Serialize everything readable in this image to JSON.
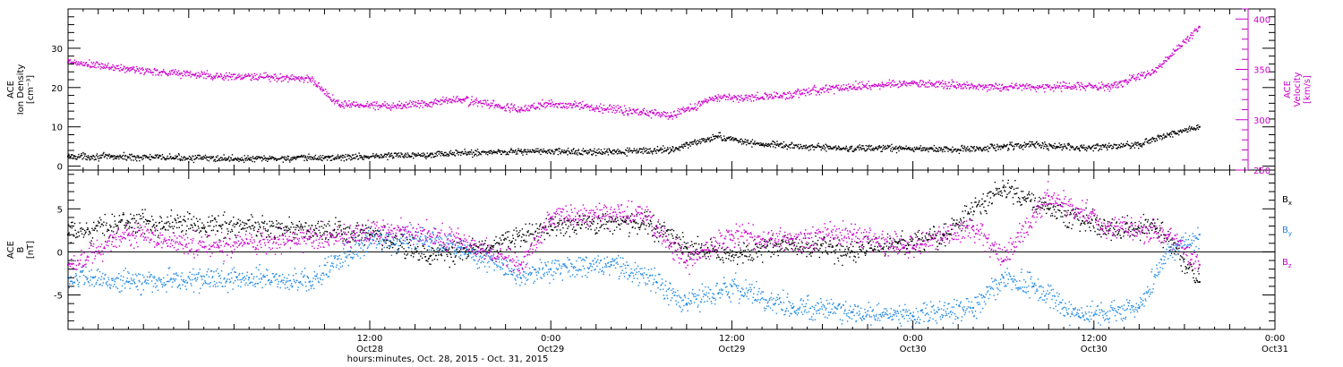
{
  "chart_data": {
    "type": "scatter",
    "x_axis": {
      "label": "hours:minutes, Oct. 28, 2015 - Oct. 31, 2015",
      "range": [
        "2015-10-27T16:00",
        "2015-10-31T00:00"
      ],
      "ticks": [
        {
          "time": "2015-10-28T12:00",
          "hm": "12:00",
          "day": "Oct28"
        },
        {
          "time": "2015-10-29T00:00",
          "hm": "0:00",
          "day": "Oct29"
        },
        {
          "time": "2015-10-29T12:00",
          "hm": "12:00",
          "day": "Oct29"
        },
        {
          "time": "2015-10-30T00:00",
          "hm": "0:00",
          "day": "Oct30"
        },
        {
          "time": "2015-10-30T12:00",
          "hm": "12:00",
          "day": "Oct30"
        },
        {
          "time": "2015-10-31T00:00",
          "hm": "0:00",
          "day": "Oct31"
        }
      ]
    },
    "panels": [
      {
        "id": "ace-plasma",
        "left_axis": {
          "ylabel": [
            "ACE",
            "Ion Density",
            "[cm⁻³]"
          ],
          "ylim": [
            -1,
            40
          ],
          "ticks": [
            0,
            10,
            20,
            30
          ],
          "color": "#000000"
        },
        "right_axis": {
          "ylabel": [
            "ACE",
            "Velocity",
            "[km/s]"
          ],
          "ylim": [
            250,
            410
          ],
          "ticks": [
            250,
            300,
            350,
            400
          ],
          "color": "#cc00cc"
        },
        "series": [
          {
            "key": "density",
            "axis": "left",
            "color": "#000000",
            "points": [
              [
                "2015-10-27T16:00",
                2.5
              ],
              [
                "2015-10-27T22:00",
                2.2
              ],
              [
                "2015-10-28T04:00",
                1.8
              ],
              [
                "2015-10-28T10:00",
                2.2
              ],
              [
                "2015-10-28T16:00",
                3.0
              ],
              [
                "2015-10-28T22:00",
                3.8
              ],
              [
                "2015-10-29T04:00",
                3.5
              ],
              [
                "2015-10-29T08:00",
                4.2
              ],
              [
                "2015-10-29T11:00",
                7.5
              ],
              [
                "2015-10-29T14:00",
                5.5
              ],
              [
                "2015-10-29T19:00",
                4.5
              ],
              [
                "2015-10-29T23:00",
                4.5
              ],
              [
                "2015-10-30T03:00",
                4.2
              ],
              [
                "2015-10-30T06:00",
                5.0
              ],
              [
                "2015-10-30T08:00",
                5.5
              ],
              [
                "2015-10-30T11:00",
                4.5
              ],
              [
                "2015-10-30T15:00",
                5.5
              ],
              [
                "2015-10-30T17:00",
                8.0
              ],
              [
                "2015-10-30T19:00",
                10.0
              ]
            ]
          },
          {
            "key": "velocity",
            "axis": "right",
            "color": "#cc00cc",
            "points": [
              [
                "2015-10-27T16:00",
                357
              ],
              [
                "2015-10-27T20:00",
                350
              ],
              [
                "2015-10-28T02:00",
                343
              ],
              [
                "2015-10-28T08:00",
                341
              ],
              [
                "2015-10-28T10:00",
                315
              ],
              [
                "2015-10-28T14:00",
                314
              ],
              [
                "2015-10-28T18:00",
                320
              ],
              [
                "2015-10-28T22:00",
                310
              ],
              [
                "2015-10-29T00:00",
                316
              ],
              [
                "2015-10-29T06:00",
                308
              ],
              [
                "2015-10-29T08:00",
                304
              ],
              [
                "2015-10-29T11:00",
                322
              ],
              [
                "2015-10-29T14:00",
                322
              ],
              [
                "2015-10-29T18:00",
                330
              ],
              [
                "2015-10-29T22:00",
                335
              ],
              [
                "2015-10-30T00:00",
                336
              ],
              [
                "2015-10-30T06:00",
                332
              ],
              [
                "2015-10-30T09:00",
                333
              ],
              [
                "2015-10-30T13:00",
                333
              ],
              [
                "2015-10-30T16:00",
                348
              ],
              [
                "2015-10-30T19:00",
                392
              ]
            ]
          }
        ]
      },
      {
        "id": "ace-mag",
        "left_axis": {
          "ylabel": [
            "ACE",
            "B",
            "[nT]"
          ],
          "ylim": [
            -9,
            9.5
          ],
          "ticks": [
            -5,
            0,
            5
          ],
          "color": "#000000"
        },
        "zero_line": true,
        "legend_placement": "right",
        "series": [
          {
            "key": "bx",
            "label": "B",
            "sub": "x",
            "color": "#000000",
            "points": [
              [
                "2015-10-27T16:00",
                2.0
              ],
              [
                "2015-10-27T20:00",
                3.5
              ],
              [
                "2015-10-28T06:00",
                2.8
              ],
              [
                "2015-10-28T12:00",
                2.0
              ],
              [
                "2015-10-28T16:00",
                -0.5
              ],
              [
                "2015-10-28T20:00",
                0.5
              ],
              [
                "2015-10-29T00:00",
                3.0
              ],
              [
                "2015-10-29T04:00",
                3.5
              ],
              [
                "2015-10-29T07:00",
                3.0
              ],
              [
                "2015-10-29T09:00",
                0.5
              ],
              [
                "2015-10-29T12:00",
                -0.5
              ],
              [
                "2015-10-29T16:00",
                1.0
              ],
              [
                "2015-10-29T20:00",
                0.0
              ],
              [
                "2015-10-29T23:00",
                1.0
              ],
              [
                "2015-10-30T02:00",
                2.0
              ],
              [
                "2015-10-30T06:00",
                7.5
              ],
              [
                "2015-10-30T09:00",
                5.0
              ],
              [
                "2015-10-30T13:00",
                2.5
              ],
              [
                "2015-10-30T16:00",
                3.0
              ],
              [
                "2015-10-30T19:00",
                -3.5
              ]
            ]
          },
          {
            "key": "by",
            "label": "B",
            "sub": "y",
            "color": "#1e88e5",
            "points": [
              [
                "2015-10-27T16:00",
                -3.0
              ],
              [
                "2015-10-27T20:00",
                -3.5
              ],
              [
                "2015-10-28T04:00",
                -3.0
              ],
              [
                "2015-10-28T08:00",
                -3.5
              ],
              [
                "2015-10-28T12:00",
                1.5
              ],
              [
                "2015-10-28T16:00",
                1.5
              ],
              [
                "2015-10-28T18:00",
                0.5
              ],
              [
                "2015-10-28T22:00",
                -3.0
              ],
              [
                "2015-10-29T00:00",
                -2.0
              ],
              [
                "2015-10-29T04:00",
                -1.5
              ],
              [
                "2015-10-29T07:00",
                -3.5
              ],
              [
                "2015-10-29T09:00",
                -6.0
              ],
              [
                "2015-10-29T12:00",
                -4.0
              ],
              [
                "2015-10-29T16:00",
                -6.5
              ],
              [
                "2015-10-29T20:00",
                -7.0
              ],
              [
                "2015-10-30T00:00",
                -7.5
              ],
              [
                "2015-10-30T04:00",
                -6.5
              ],
              [
                "2015-10-30T06:00",
                -3.0
              ],
              [
                "2015-10-30T08:00",
                -4.0
              ],
              [
                "2015-10-30T11:00",
                -7.5
              ],
              [
                "2015-10-30T15:00",
                -6.5
              ],
              [
                "2015-10-30T17:00",
                0.0
              ],
              [
                "2015-10-30T19:00",
                2.0
              ]
            ]
          },
          {
            "key": "bz",
            "label": "B",
            "sub": "z",
            "color": "#cc00cc",
            "points": [
              [
                "2015-10-27T16:00",
                -1.5
              ],
              [
                "2015-10-27T20:00",
                2.0
              ],
              [
                "2015-10-28T02:00",
                0.5
              ],
              [
                "2015-10-28T08:00",
                1.5
              ],
              [
                "2015-10-28T14:00",
                2.5
              ],
              [
                "2015-10-28T18:00",
                1.5
              ],
              [
                "2015-10-28T22:00",
                -1.5
              ],
              [
                "2015-10-29T00:00",
                4.0
              ],
              [
                "2015-10-29T06:00",
                4.5
              ],
              [
                "2015-10-29T09:00",
                -1.0
              ],
              [
                "2015-10-29T12:00",
                2.0
              ],
              [
                "2015-10-29T16:00",
                1.5
              ],
              [
                "2015-10-29T20:00",
                2.0
              ],
              [
                "2015-10-30T00:00",
                0.5
              ],
              [
                "2015-10-30T04:00",
                3.0
              ],
              [
                "2015-10-30T06:00",
                -1.0
              ],
              [
                "2015-10-30T09:00",
                6.5
              ],
              [
                "2015-10-30T13:00",
                3.0
              ],
              [
                "2015-10-30T17:00",
                2.0
              ],
              [
                "2015-10-30T19:00",
                -1.5
              ]
            ]
          }
        ]
      }
    ]
  }
}
